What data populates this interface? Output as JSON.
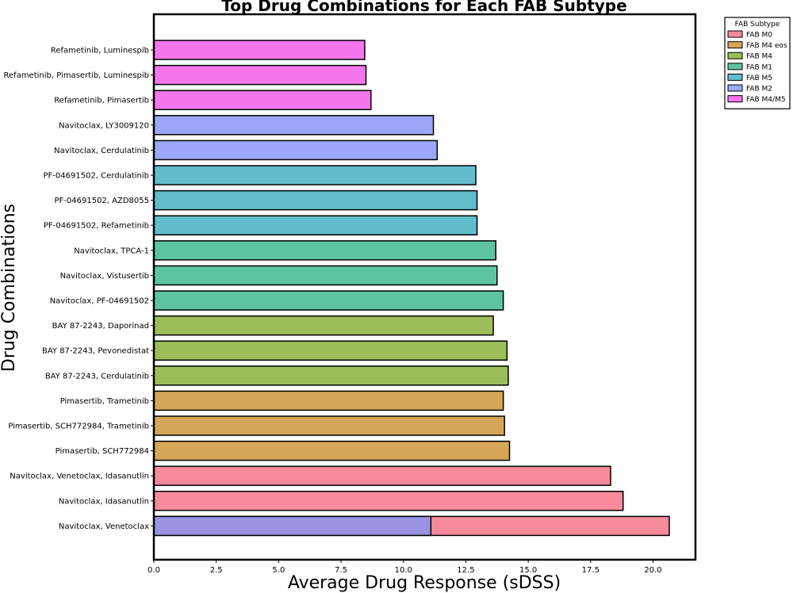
{
  "chart_data": {
    "type": "bar",
    "orientation": "horizontal",
    "title": "Top Drug Combinations for Each FAB Subtype",
    "xlabel": "Average Drug Response (sDSS)",
    "ylabel": "Drug Combinations",
    "xlim": [
      0,
      21.7
    ],
    "xticks": [
      "0.0",
      "2.5",
      "5.0",
      "7.5",
      "10.0",
      "12.5",
      "15.0",
      "17.5",
      "20.0"
    ],
    "xtick_values": [
      0,
      2.5,
      5,
      7.5,
      10,
      12.5,
      15,
      17.5,
      20
    ],
    "grid": false,
    "legend": {
      "title": "FAB Subtype",
      "placement": "outside-top-right",
      "entries": [
        {
          "name": "FAB M0",
          "color": "#f78b9b"
        },
        {
          "name": "FAB M4 eos",
          "color": "#d4a656"
        },
        {
          "name": "FAB M4",
          "color": "#9dbd58"
        },
        {
          "name": "FAB M1",
          "color": "#5dc4a2"
        },
        {
          "name": "FAB M5",
          "color": "#5fbdcc"
        },
        {
          "name": "FAB M2",
          "color": "#9ba8f7"
        },
        {
          "name": "FAB M4/M5",
          "color": "#f576ec"
        }
      ]
    },
    "bars": [
      {
        "label": "Refametinib, Luminespib",
        "value": 8.45,
        "subtype": "FAB M4/M5"
      },
      {
        "label": "Refametinib, Pimasertib, Luminespib",
        "value": 8.5,
        "subtype": "FAB M4/M5"
      },
      {
        "label": "Refametinib, Pimasertib",
        "value": 8.7,
        "subtype": "FAB M4/M5"
      },
      {
        "label": "Navitoclax, LY3009120",
        "value": 11.2,
        "subtype": "FAB M2"
      },
      {
        "label": "Navitoclax, Cerdulatinib",
        "value": 11.35,
        "subtype": "FAB M2"
      },
      {
        "label": "PF-04691502, Cerdulatinib",
        "value": 12.9,
        "subtype": "FAB M5"
      },
      {
        "label": "PF-04691502, AZD8055",
        "value": 12.95,
        "subtype": "FAB M5"
      },
      {
        "label": "PF-04691502, Refametinib",
        "value": 12.95,
        "subtype": "FAB M5"
      },
      {
        "label": "Navitoclax, TPCA-1",
        "value": 13.7,
        "subtype": "FAB M1"
      },
      {
        "label": "Navitoclax, Vistusertib",
        "value": 13.75,
        "subtype": "FAB M1"
      },
      {
        "label": "Navitoclax, PF-04691502",
        "value": 14.0,
        "subtype": "FAB M1"
      },
      {
        "label": "BAY 87-2243, Daporinad",
        "value": 13.6,
        "subtype": "FAB M4"
      },
      {
        "label": "BAY 87-2243, Pevonedistat",
        "value": 14.15,
        "subtype": "FAB M4"
      },
      {
        "label": "BAY 87-2243, Cerdulatinib",
        "value": 14.2,
        "subtype": "FAB M4"
      },
      {
        "label": "Pimasertib, Trametinib",
        "value": 14.0,
        "subtype": "FAB M4 eos"
      },
      {
        "label": "Pimasertib, SCH772984, Trametinib",
        "value": 14.05,
        "subtype": "FAB M4 eos"
      },
      {
        "label": "Pimasertib, SCH772984",
        "value": 14.25,
        "subtype": "FAB M4 eos"
      },
      {
        "label": "Navitoclax, Venetoclax, Idasanutlin",
        "value": 18.3,
        "subtype": "FAB M0"
      },
      {
        "label": "Navitoclax, Idasanutlin",
        "value": 18.8,
        "subtype": "FAB M0"
      },
      {
        "label": "Navitoclax, Venetoclax",
        "value": 20.65,
        "subtype": "FAB M0",
        "overlay": {
          "value": 11.1,
          "subtype": "FAB M2",
          "color": "#9a93e2"
        }
      }
    ]
  }
}
